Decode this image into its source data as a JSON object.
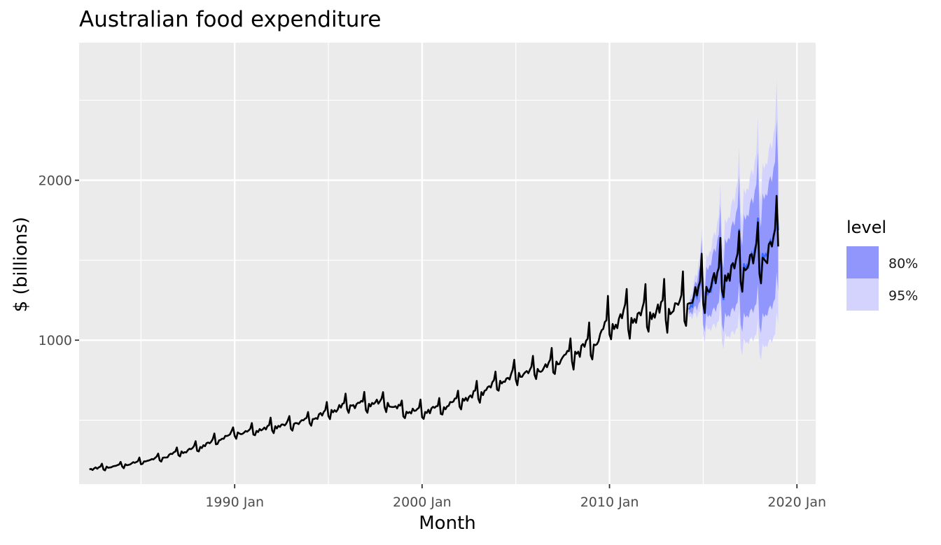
{
  "chart_data": {
    "type": "line",
    "title": "Australian food expenditure",
    "xlabel": "Month",
    "ylabel": "$ (billions)",
    "xlim": [
      1981.7,
      2021.0
    ],
    "ylim": [
      100,
      2860
    ],
    "x_ticks": [
      {
        "value": 1990.0,
        "label": "1990 Jan"
      },
      {
        "value": 2000.0,
        "label": "2000 Jan"
      },
      {
        "value": 2010.0,
        "label": "2010 Jan"
      },
      {
        "value": 2020.0,
        "label": "2020 Jan"
      }
    ],
    "y_ticks": [
      {
        "value": 1000,
        "label": "1000"
      },
      {
        "value": 2000,
        "label": "2000"
      }
    ],
    "grid": true,
    "colors": {
      "panel": "#ebebeb",
      "grid": "#ffffff",
      "actual": "#000000",
      "forecast": "#3366ff",
      "band80": "#9096fc",
      "band95": "#d3d3fd"
    },
    "legend": {
      "title": "level",
      "placement": "right",
      "entries": [
        {
          "label": "80%",
          "color": "#9096fc"
        },
        {
          "label": "95%",
          "color": "#d3d3fd"
        }
      ]
    },
    "actual_series": {
      "start": 1982.25,
      "step": 0.0833333,
      "trend": [
        [
          1982.25,
          195
        ],
        [
          1984.0,
          220
        ],
        [
          1986.0,
          265
        ],
        [
          1988.0,
          330
        ],
        [
          1990.0,
          420
        ],
        [
          1992.0,
          460
        ],
        [
          1994.0,
          505
        ],
        [
          1996.0,
          600
        ],
        [
          1998.0,
          615
        ],
        [
          1999.0,
          565
        ],
        [
          2000.0,
          560
        ],
        [
          2001.0,
          580
        ],
        [
          2002.0,
          630
        ],
        [
          2003.0,
          670
        ],
        [
          2004.0,
          740
        ],
        [
          2005.0,
          790
        ],
        [
          2006.0,
          820
        ],
        [
          2007.0,
          860
        ],
        [
          2008.0,
          930
        ],
        [
          2009.0,
          970
        ],
        [
          2010.0,
          1120
        ],
        [
          2011.0,
          1170
        ],
        [
          2012.0,
          1180
        ],
        [
          2013.0,
          1210
        ],
        [
          2014.0,
          1240
        ],
        [
          2015.0,
          1330
        ],
        [
          2016.0,
          1420
        ],
        [
          2017.0,
          1490
        ],
        [
          2018.0,
          1530
        ],
        [
          2018.9,
          1610
        ],
        [
          2019.0,
          1750
        ]
      ]
    },
    "forecast_series": {
      "trend": [
        [
          2014.25,
          1240
        ],
        [
          2015.0,
          1320
        ],
        [
          2016.0,
          1410
        ],
        [
          2017.0,
          1490
        ],
        [
          2018.0,
          1550
        ],
        [
          2018.9,
          1630
        ],
        [
          2019.0,
          1830
        ]
      ],
      "band80_halfwidth": [
        [
          2014.25,
          30
        ],
        [
          2015.0,
          130
        ],
        [
          2016.0,
          220
        ],
        [
          2017.0,
          300
        ],
        [
          2018.0,
          370
        ],
        [
          2019.0,
          420
        ]
      ],
      "band95_halfwidth": [
        [
          2014.25,
          50
        ],
        [
          2015.0,
          200
        ],
        [
          2016.0,
          340
        ],
        [
          2017.0,
          460
        ],
        [
          2018.0,
          560
        ],
        [
          2019.0,
          640
        ]
      ]
    }
  }
}
